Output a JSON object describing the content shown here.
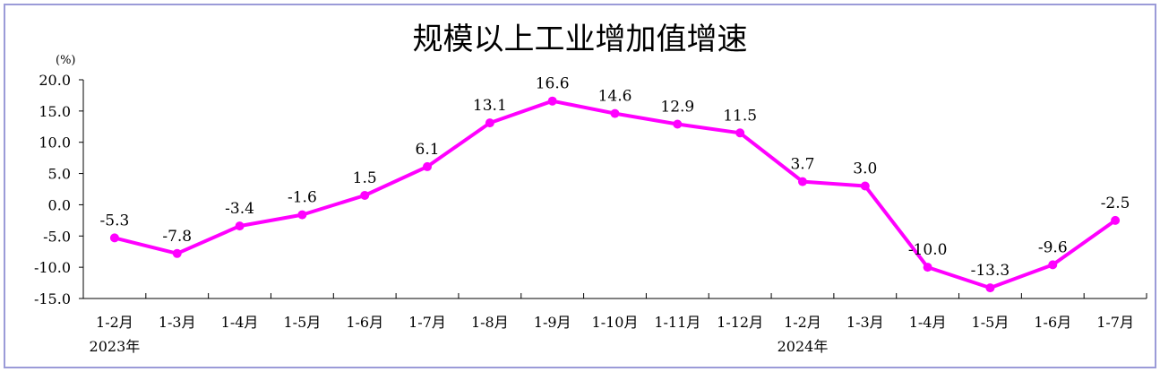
{
  "title": "规模以上工业增加值增速",
  "unit": "(%)",
  "colors": {
    "line": "#ff00ff",
    "axis": "#000000",
    "frame": "#9b9bd8"
  },
  "chart_data": {
    "type": "line",
    "title": "规模以上工业增加值增速",
    "ylabel": "(%)",
    "ylim": [
      -15,
      20
    ],
    "yticks": [
      "20.0",
      "15.0",
      "10.0",
      "5.0",
      "0.0",
      "-5.0",
      "-10.0",
      "-15.0"
    ],
    "ytick_values": [
      20,
      15,
      10,
      5,
      0,
      -5,
      -10,
      -15
    ],
    "grid": false,
    "categories": [
      "1-2月",
      "1-3月",
      "1-4月",
      "1-5月",
      "1-6月",
      "1-7月",
      "1-8月",
      "1-9月",
      "1-10月",
      "1-11月",
      "1-12月",
      "1-2月",
      "1-3月",
      "1-4月",
      "1-5月",
      "1-6月",
      "1-7月"
    ],
    "year_labels": [
      {
        "text": "2023年",
        "category_index": 0
      },
      {
        "text": "2024年",
        "category_index": 11
      }
    ],
    "series": [
      {
        "values": [
          -5.3,
          -7.8,
          -3.4,
          -1.6,
          1.5,
          6.1,
          13.1,
          16.6,
          14.6,
          12.9,
          11.5,
          3.7,
          3.0,
          -10.0,
          -13.3,
          -9.6,
          -2.5
        ],
        "labels": [
          "-5.3",
          "-7.8",
          "-3.4",
          "-1.6",
          "1.5",
          "6.1",
          "13.1",
          "16.6",
          "14.6",
          "12.9",
          "11.5",
          "3.7",
          "3.0",
          "-10.0",
          "-13.3",
          "-9.6",
          "-2.5"
        ]
      }
    ]
  }
}
